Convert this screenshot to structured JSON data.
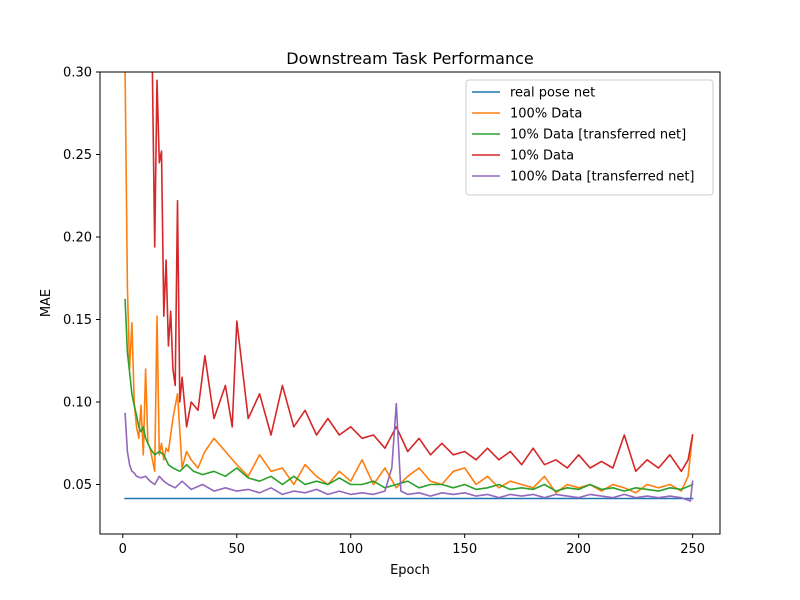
{
  "chart_data": {
    "type": "line",
    "title": "Downstream Task Performance",
    "xlabel": "Epoch",
    "ylabel": "MAE",
    "xlim": [
      -10,
      262
    ],
    "ylim": [
      0.02,
      0.3
    ],
    "xticks": [
      0,
      50,
      100,
      150,
      200,
      250
    ],
    "yticks": [
      0.05,
      0.1,
      0.15,
      0.2,
      0.25,
      0.3
    ],
    "ytick_labels": [
      "0.05",
      "0.10",
      "0.15",
      "0.20",
      "0.25",
      "0.30"
    ],
    "grid": false,
    "legend_position": "top-right",
    "series": [
      {
        "name": "real pose net",
        "color": "#1f77b4",
        "x": [
          1,
          250
        ],
        "values": [
          0.0415,
          0.0415
        ]
      },
      {
        "name": "100% Data",
        "color": "#ff7f0e",
        "x": [
          1,
          2,
          3,
          4,
          5,
          6,
          7,
          8,
          9,
          10,
          11,
          12,
          13,
          14,
          15,
          16,
          17,
          18,
          19,
          20,
          22,
          24,
          26,
          28,
          30,
          33,
          36,
          40,
          45,
          50,
          55,
          60,
          65,
          70,
          75,
          80,
          85,
          90,
          95,
          100,
          105,
          110,
          115,
          120,
          125,
          130,
          135,
          140,
          145,
          150,
          155,
          160,
          165,
          170,
          175,
          180,
          185,
          190,
          195,
          200,
          205,
          210,
          215,
          220,
          225,
          230,
          235,
          240,
          245,
          248,
          250
        ],
        "values": [
          0.3,
          0.17,
          0.12,
          0.148,
          0.1,
          0.085,
          0.078,
          0.098,
          0.068,
          0.12,
          0.075,
          0.072,
          0.065,
          0.058,
          0.152,
          0.068,
          0.075,
          0.065,
          0.072,
          0.07,
          0.09,
          0.105,
          0.06,
          0.07,
          0.065,
          0.06,
          0.07,
          0.078,
          0.07,
          0.062,
          0.055,
          0.068,
          0.058,
          0.06,
          0.05,
          0.062,
          0.055,
          0.05,
          0.058,
          0.052,
          0.065,
          0.05,
          0.06,
          0.048,
          0.055,
          0.06,
          0.052,
          0.05,
          0.058,
          0.06,
          0.05,
          0.055,
          0.048,
          0.052,
          0.05,
          0.048,
          0.055,
          0.045,
          0.05,
          0.048,
          0.05,
          0.046,
          0.05,
          0.048,
          0.045,
          0.05,
          0.048,
          0.05,
          0.046,
          0.055,
          0.08
        ]
      },
      {
        "name": "10% Data [transferred net]",
        "color": "#2ca02c",
        "x": [
          1,
          2,
          3,
          4,
          5,
          6,
          7,
          8,
          9,
          10,
          12,
          14,
          16,
          18,
          20,
          22,
          25,
          28,
          31,
          35,
          40,
          45,
          50,
          55,
          60,
          65,
          70,
          75,
          80,
          85,
          90,
          95,
          100,
          105,
          110,
          115,
          120,
          125,
          130,
          135,
          140,
          145,
          150,
          155,
          160,
          165,
          170,
          175,
          180,
          185,
          190,
          195,
          200,
          205,
          210,
          215,
          220,
          225,
          230,
          235,
          240,
          245,
          250
        ],
        "values": [
          0.162,
          0.13,
          0.118,
          0.105,
          0.098,
          0.092,
          0.085,
          0.082,
          0.085,
          0.078,
          0.072,
          0.068,
          0.07,
          0.068,
          0.062,
          0.06,
          0.058,
          0.062,
          0.058,
          0.056,
          0.058,
          0.055,
          0.06,
          0.054,
          0.052,
          0.055,
          0.05,
          0.055,
          0.05,
          0.052,
          0.05,
          0.054,
          0.05,
          0.05,
          0.052,
          0.048,
          0.05,
          0.052,
          0.048,
          0.05,
          0.05,
          0.048,
          0.05,
          0.047,
          0.048,
          0.05,
          0.047,
          0.048,
          0.047,
          0.05,
          0.046,
          0.048,
          0.047,
          0.05,
          0.047,
          0.048,
          0.046,
          0.048,
          0.047,
          0.046,
          0.048,
          0.047,
          0.05
        ]
      },
      {
        "name": "10% Data",
        "color": "#d62728",
        "x": [
          13,
          14,
          15,
          16,
          17,
          18,
          19,
          20,
          21,
          22,
          23,
          24,
          25,
          26,
          28,
          30,
          33,
          36,
          40,
          45,
          48,
          50,
          55,
          60,
          65,
          70,
          75,
          80,
          85,
          90,
          95,
          100,
          105,
          110,
          115,
          120,
          125,
          130,
          135,
          140,
          145,
          150,
          155,
          160,
          165,
          170,
          175,
          180,
          185,
          190,
          195,
          200,
          205,
          210,
          215,
          220,
          225,
          230,
          235,
          240,
          245,
          248,
          250
        ],
        "values": [
          0.3,
          0.194,
          0.295,
          0.245,
          0.252,
          0.152,
          0.186,
          0.134,
          0.155,
          0.12,
          0.11,
          0.222,
          0.1,
          0.115,
          0.085,
          0.1,
          0.095,
          0.128,
          0.09,
          0.11,
          0.085,
          0.149,
          0.09,
          0.105,
          0.08,
          0.11,
          0.085,
          0.095,
          0.08,
          0.09,
          0.08,
          0.085,
          0.078,
          0.08,
          0.072,
          0.085,
          0.07,
          0.078,
          0.068,
          0.075,
          0.068,
          0.07,
          0.065,
          0.072,
          0.065,
          0.07,
          0.062,
          0.072,
          0.062,
          0.065,
          0.06,
          0.068,
          0.06,
          0.064,
          0.06,
          0.08,
          0.058,
          0.065,
          0.06,
          0.068,
          0.058,
          0.065,
          0.08
        ]
      },
      {
        "name": "100% Data [transferred net]",
        "color": "#9467bd",
        "x": [
          1,
          2,
          3,
          4,
          5,
          6,
          8,
          10,
          12,
          14,
          16,
          18,
          20,
          23,
          26,
          30,
          35,
          40,
          45,
          50,
          55,
          60,
          65,
          70,
          75,
          80,
          85,
          90,
          95,
          100,
          105,
          110,
          115,
          118,
          120,
          122,
          125,
          130,
          135,
          140,
          145,
          150,
          155,
          160,
          165,
          170,
          175,
          180,
          185,
          190,
          195,
          200,
          205,
          210,
          215,
          220,
          225,
          230,
          235,
          240,
          245,
          249,
          250
        ],
        "values": [
          0.093,
          0.07,
          0.062,
          0.058,
          0.057,
          0.055,
          0.054,
          0.055,
          0.052,
          0.05,
          0.055,
          0.052,
          0.05,
          0.048,
          0.052,
          0.047,
          0.05,
          0.046,
          0.048,
          0.046,
          0.047,
          0.045,
          0.048,
          0.044,
          0.046,
          0.045,
          0.047,
          0.044,
          0.046,
          0.044,
          0.045,
          0.044,
          0.046,
          0.06,
          0.099,
          0.046,
          0.044,
          0.045,
          0.043,
          0.045,
          0.044,
          0.045,
          0.043,
          0.044,
          0.042,
          0.044,
          0.043,
          0.044,
          0.042,
          0.044,
          0.043,
          0.042,
          0.044,
          0.043,
          0.042,
          0.044,
          0.042,
          0.043,
          0.042,
          0.043,
          0.042,
          0.04,
          0.052
        ]
      }
    ]
  }
}
